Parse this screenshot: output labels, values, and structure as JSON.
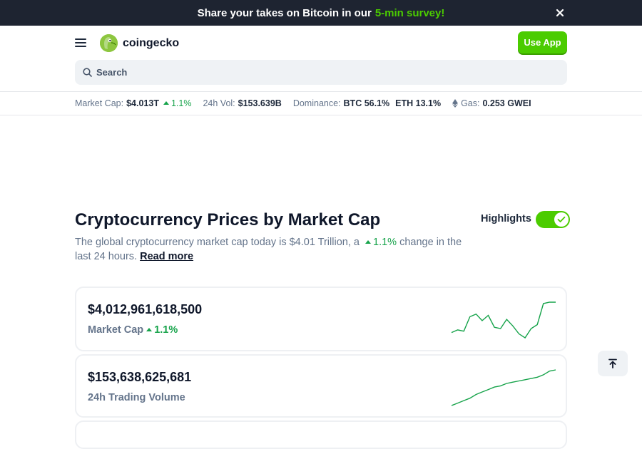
{
  "banner": {
    "text": "Share your takes on Bitcoin in our",
    "highlight": "5-min survey!"
  },
  "header": {
    "brand": "coingecko",
    "use_app_label": "Use App"
  },
  "search": {
    "placeholder": "Search"
  },
  "stats": {
    "market_cap_label": "Market Cap:",
    "market_cap_value": "$4.013T",
    "market_cap_change": "1.1%",
    "vol_label": "24h Vol:",
    "vol_value": "$153.639B",
    "dominance_label": "Dominance:",
    "btc": "BTC 56.1%",
    "eth": "ETH 13.1%",
    "gas_label": "Gas:",
    "gas_value": "0.253 GWEI"
  },
  "main": {
    "title": "Cryptocurrency Prices by Market Cap",
    "desc_pre": "The global cryptocurrency market cap today is $4.01 Trillion, a",
    "desc_change": "1.1%",
    "desc_post": "change in the last 24 hours.",
    "read_more": "Read more",
    "highlights_label": "Highlights",
    "highlights_on": true
  },
  "cards": [
    {
      "value": "$4,012,961,618,500",
      "label": "Market Cap",
      "change": "1.1%",
      "spark": [
        28,
        30,
        29,
        40,
        42,
        37,
        41,
        32,
        31,
        38,
        33,
        27,
        24,
        31,
        34,
        50,
        51,
        51
      ]
    },
    {
      "value": "$153,638,625,681",
      "label": "24h Trading Volume",
      "spark": [
        4,
        6,
        8,
        10,
        13,
        15,
        17,
        19,
        20,
        22,
        23,
        24,
        25,
        26,
        27,
        29,
        32,
        33
      ]
    }
  ],
  "colors": {
    "accent": "#4bcc00",
    "up": "#16a34a",
    "banner_bg": "#1e2431"
  }
}
